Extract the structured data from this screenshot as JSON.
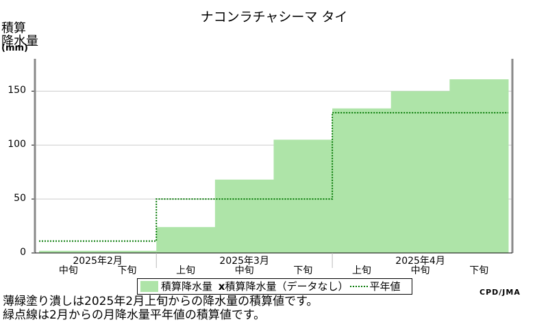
{
  "chart_data": {
    "type": "bar",
    "title": "ナコンラチャシーマ タイ",
    "ylabel_line1": "積算",
    "ylabel_line2": "降水量",
    "ylabel_unit": "(mm)",
    "ylim": [
      0,
      180
    ],
    "yticks": [
      "0",
      "50",
      "100",
      "150"
    ],
    "grid": true,
    "categories": [
      "2025年2月 中旬",
      "2025年2月 下旬",
      "2025年3月 上旬",
      "2025年3月 中旬",
      "2025年3月 下旬",
      "2025年4月 上旬",
      "2025年4月 中旬",
      "2025年4月 下旬"
    ],
    "month_labels": [
      "2025年2月",
      "2025年3月",
      "2025年4月"
    ],
    "dekad_labels": [
      "中旬",
      "下旬",
      "上旬",
      "中旬",
      "下旬",
      "上旬",
      "中旬",
      "下旬"
    ],
    "series": [
      {
        "name": "積算降水量",
        "values": [
          2,
          2,
          24,
          68,
          105,
          134,
          150,
          161
        ],
        "color": "#aee4a8"
      },
      {
        "name": "積算降水量平年値",
        "values": [
          11,
          11,
          50,
          50,
          50,
          130,
          130,
          130
        ],
        "color": "#007700"
      }
    ],
    "legend": {
      "item1": "積算降水量",
      "item2_prefix": "x",
      "item2": "積算降水量（データなし）",
      "item3": "平年値"
    },
    "credit": "CPD/JMA",
    "notes": [
      "薄緑塗り潰しは2025年2月上旬からの降水量の積算値です。",
      "緑点線は2月からの月降水量平年値の積算値です。"
    ]
  }
}
